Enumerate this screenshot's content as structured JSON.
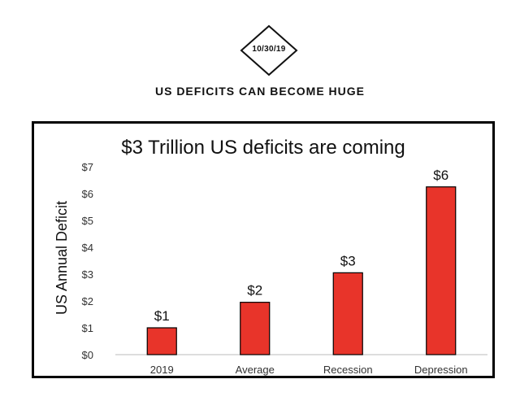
{
  "post": {
    "date": "10/30/19",
    "title": "US DEFICITS CAN BECOME HUGE"
  },
  "chart_data": {
    "type": "bar",
    "title": "$3 Trillion US deficits are coming",
    "xlabel": "",
    "ylabel": "US Annual Deficit",
    "categories": [
      "2019",
      "Average",
      "Recession",
      "Depression"
    ],
    "values": [
      1.0,
      1.95,
      3.05,
      6.25
    ],
    "data_labels": [
      "$1",
      "$2",
      "$3",
      "$6"
    ],
    "ylim": [
      0,
      7
    ],
    "yticks": [
      0,
      1,
      2,
      3,
      4,
      5,
      6,
      7
    ],
    "ytick_labels": [
      "$0",
      "$1",
      "$2",
      "$3",
      "$4",
      "$5",
      "$6",
      "$7"
    ],
    "grid": false,
    "bar_color": "#e8342a",
    "bar_edge_color": "#000000"
  }
}
